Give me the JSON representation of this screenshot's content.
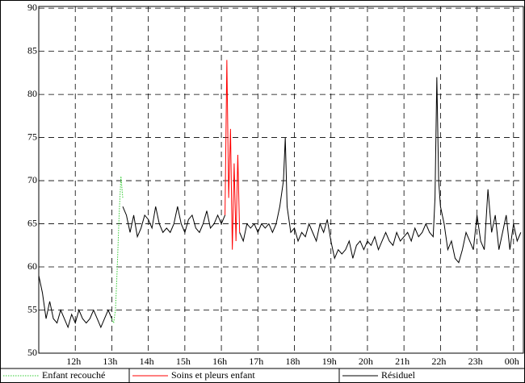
{
  "chart_data": {
    "type": "line",
    "xlim": [
      11,
      24.27
    ],
    "ylim": [
      50,
      90.2
    ],
    "xticks": [
      {
        "value": 12,
        "label": "12h"
      },
      {
        "value": 13,
        "label": "13h"
      },
      {
        "value": 14,
        "label": "14h"
      },
      {
        "value": 15,
        "label": "15h"
      },
      {
        "value": 16,
        "label": "16h"
      },
      {
        "value": 17,
        "label": "17h"
      },
      {
        "value": 18,
        "label": "18h"
      },
      {
        "value": 19,
        "label": "19h"
      },
      {
        "value": 20,
        "label": "20h"
      },
      {
        "value": 21,
        "label": "21h"
      },
      {
        "value": 22,
        "label": "22h"
      },
      {
        "value": 23,
        "label": "23h"
      },
      {
        "value": 24,
        "label": "00h"
      }
    ],
    "yticks": [
      50,
      55,
      60,
      65,
      70,
      75,
      80,
      85,
      90
    ],
    "grid": true,
    "series": [
      {
        "name": "Enfant recouché",
        "color": "#33cc33",
        "dash": "dotted",
        "x": [
          13.0,
          13.05,
          13.1,
          13.15,
          13.2,
          13.25,
          13.3
        ],
        "values": [
          54,
          53.5,
          55,
          60,
          66,
          70.5,
          68
        ]
      },
      {
        "name": "Soins et pleurs enfant",
        "color": "#ff0000",
        "dash": "solid",
        "x": [
          16.1,
          16.15,
          16.2,
          16.25,
          16.3,
          16.35,
          16.4,
          16.45,
          16.5
        ],
        "values": [
          66,
          84,
          68,
          76,
          62,
          72,
          63,
          73,
          64
        ]
      },
      {
        "name": "Résiduel",
        "color": "#000000",
        "dash": "solid",
        "x": [
          11.0,
          11.1,
          11.2,
          11.3,
          11.4,
          11.5,
          11.6,
          11.7,
          11.8,
          11.9,
          12.0,
          12.1,
          12.2,
          12.3,
          12.4,
          12.5,
          12.6,
          12.7,
          12.8,
          12.9,
          13.0,
          13.15,
          13.3,
          13.4,
          13.5,
          13.6,
          13.7,
          13.8,
          13.9,
          14.0,
          14.1,
          14.2,
          14.3,
          14.4,
          14.5,
          14.6,
          14.7,
          14.8,
          14.9,
          15.0,
          15.1,
          15.2,
          15.3,
          15.4,
          15.5,
          15.6,
          15.7,
          15.8,
          15.9,
          16.0,
          16.1,
          16.3,
          16.5,
          16.6,
          16.7,
          16.8,
          16.9,
          17.0,
          17.1,
          17.2,
          17.3,
          17.4,
          17.5,
          17.6,
          17.7,
          17.75,
          17.8,
          17.9,
          18.0,
          18.1,
          18.2,
          18.3,
          18.4,
          18.5,
          18.6,
          18.7,
          18.8,
          18.9,
          19.0,
          19.1,
          19.2,
          19.3,
          19.4,
          19.5,
          19.6,
          19.7,
          19.8,
          19.9,
          20.0,
          20.1,
          20.2,
          20.3,
          20.4,
          20.5,
          20.6,
          20.7,
          20.8,
          20.9,
          21.0,
          21.1,
          21.2,
          21.3,
          21.4,
          21.5,
          21.6,
          21.7,
          21.8,
          21.85,
          21.9,
          21.95,
          22.0,
          22.1,
          22.2,
          22.3,
          22.4,
          22.5,
          22.6,
          22.7,
          22.8,
          22.9,
          23.0,
          23.1,
          23.2,
          23.3,
          23.4,
          23.5,
          23.6,
          23.7,
          23.8,
          23.9,
          24.0,
          24.1,
          24.2
        ],
        "values": [
          59,
          57,
          54,
          56,
          54,
          53.5,
          55,
          54,
          53,
          54.5,
          53.5,
          55,
          54,
          53.5,
          54,
          55,
          54,
          53,
          54,
          55,
          54,
          null,
          67,
          66,
          64,
          66,
          63.5,
          64.5,
          66,
          65.5,
          64.5,
          67,
          65,
          64,
          64.5,
          64,
          65,
          67,
          65,
          64,
          65.5,
          66,
          64.5,
          64,
          65,
          66.5,
          64.5,
          65,
          66,
          65,
          66,
          null,
          64,
          63,
          65,
          64.5,
          65,
          64,
          65,
          64.5,
          65,
          64,
          65,
          67,
          70,
          75,
          67,
          64,
          64.5,
          63,
          64,
          63.5,
          65,
          64,
          63,
          65,
          64,
          65.5,
          63,
          61,
          62,
          61.5,
          62,
          63,
          61,
          62.5,
          63,
          62,
          63,
          62.5,
          63.5,
          62,
          63,
          64,
          63,
          62.5,
          64,
          63,
          63.5,
          64,
          63,
          64.5,
          63.5,
          64,
          65,
          64,
          63.5,
          68,
          82,
          70,
          67,
          65,
          62,
          63,
          61,
          60.5,
          62,
          64,
          63,
          62,
          66,
          63,
          62,
          69,
          64,
          66,
          62,
          64,
          66,
          62,
          65,
          63,
          64
        ]
      }
    ]
  }
}
